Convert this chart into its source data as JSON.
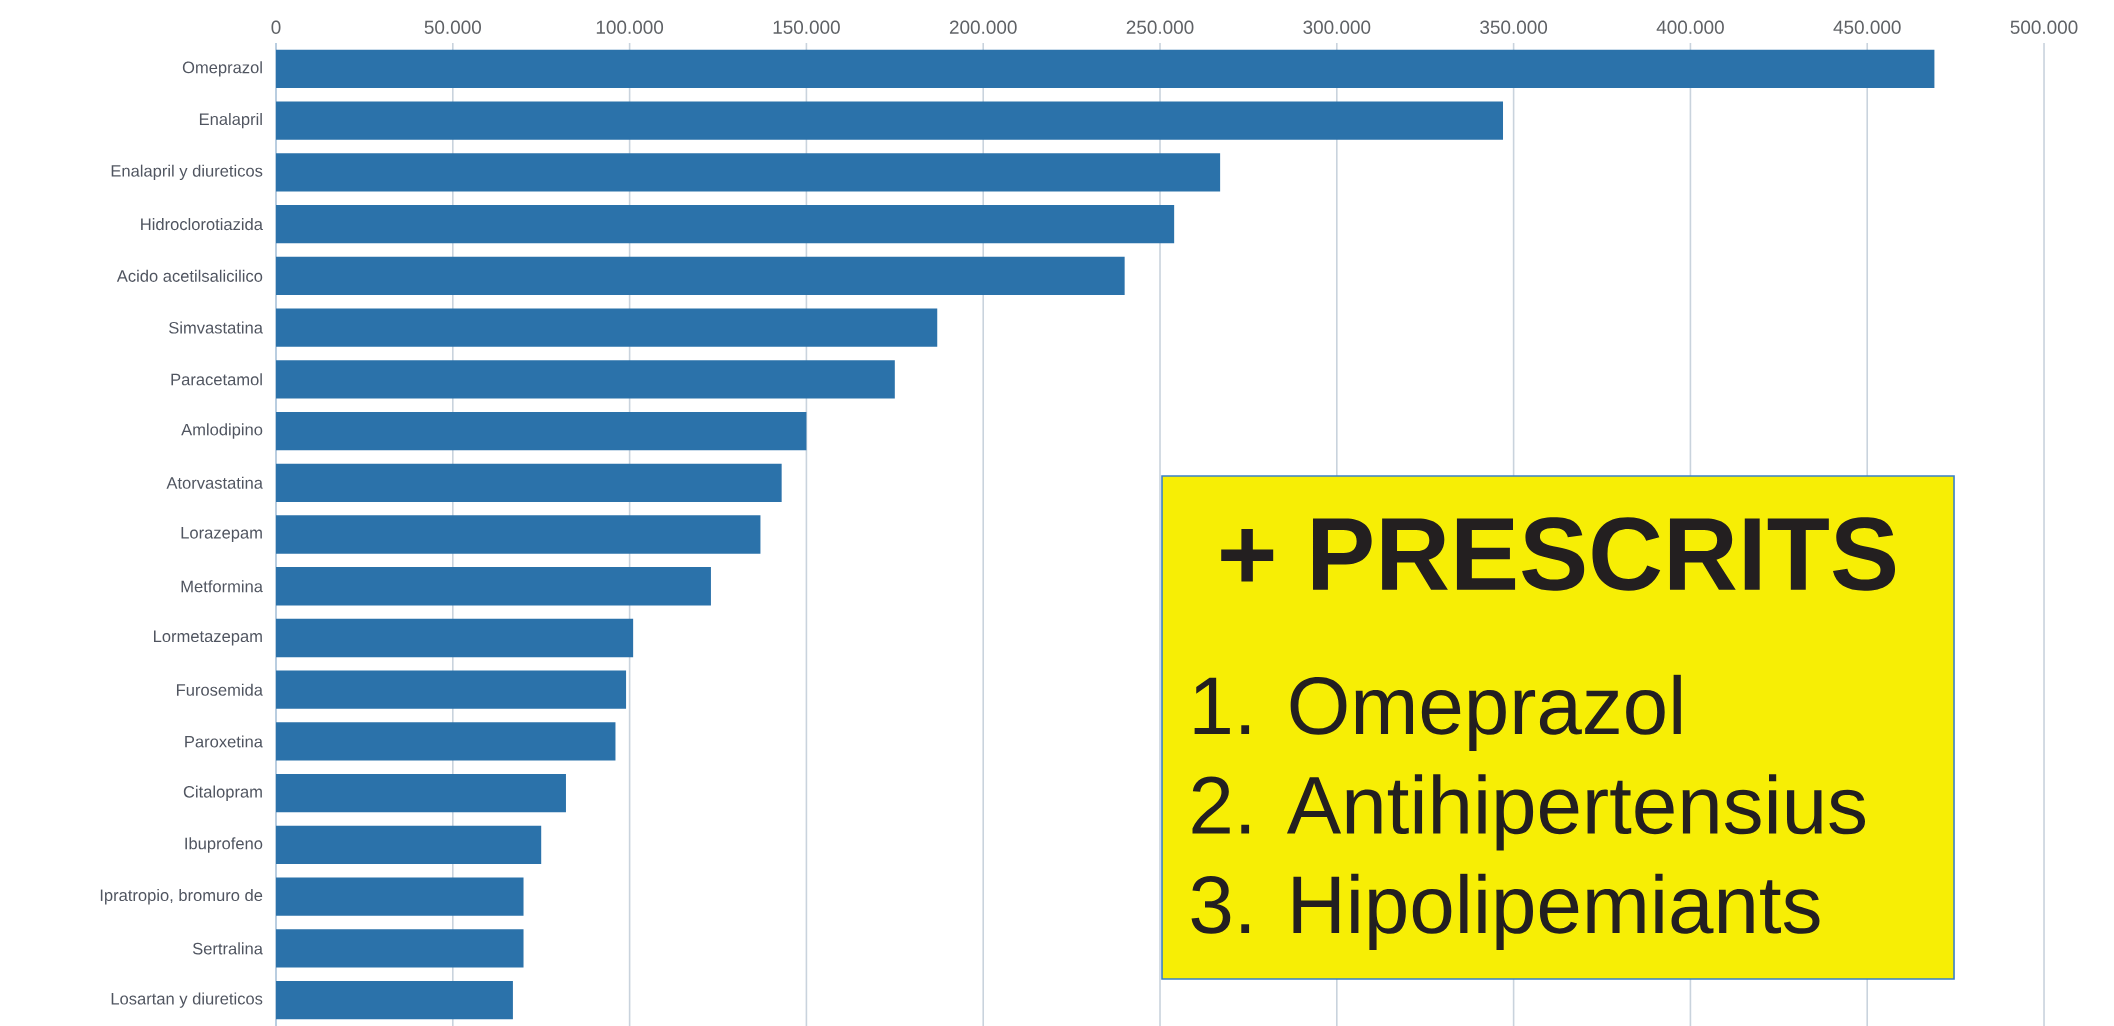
{
  "chart_data": {
    "type": "bar",
    "orientation": "horizontal",
    "categories": [
      "Omeprazol",
      "Enalapril",
      "Enalapril y diureticos",
      "Hidroclorotiazida",
      "Acido acetilsalicilico",
      "Simvastatina",
      "Paracetamol",
      "Amlodipino",
      "Atorvastatina",
      "Lorazepam",
      "Metformina",
      "Lormetazepam",
      "Furosemida",
      "Paroxetina",
      "Citalopram",
      "Ibuprofeno",
      "Ipratropio, bromuro de",
      "Sertralina",
      "Losartan y diureticos"
    ],
    "values": [
      469000,
      347000,
      267000,
      254000,
      240000,
      187000,
      175000,
      150000,
      143000,
      137000,
      123000,
      101000,
      99000,
      96000,
      82000,
      75000,
      70000,
      70000,
      67000
    ],
    "color": "#2b72aa",
    "xlim": [
      0,
      500000
    ],
    "xticks": [
      0,
      {
        "value": 50000,
        "label": "50.000"
      },
      {
        "value": 100000,
        "label": "100.000"
      },
      {
        "value": 150000,
        "label": "150.000"
      },
      {
        "value": 200000,
        "label": "200.000"
      },
      {
        "value": 250000,
        "label": "250.000"
      },
      {
        "value": 300000,
        "label": "300.000"
      },
      {
        "value": 350000,
        "label": "350.000"
      },
      {
        "value": 400000,
        "label": "400.000"
      },
      {
        "value": 450000,
        "label": "450.000"
      },
      {
        "value": 500000,
        "label": "500.000"
      }
    ],
    "grid": "x",
    "annotations": [
      "+ PRESCRITS",
      "1. Omeprazol",
      "2. Antihipertensius",
      "3. Hipolipemiants"
    ]
  }
}
